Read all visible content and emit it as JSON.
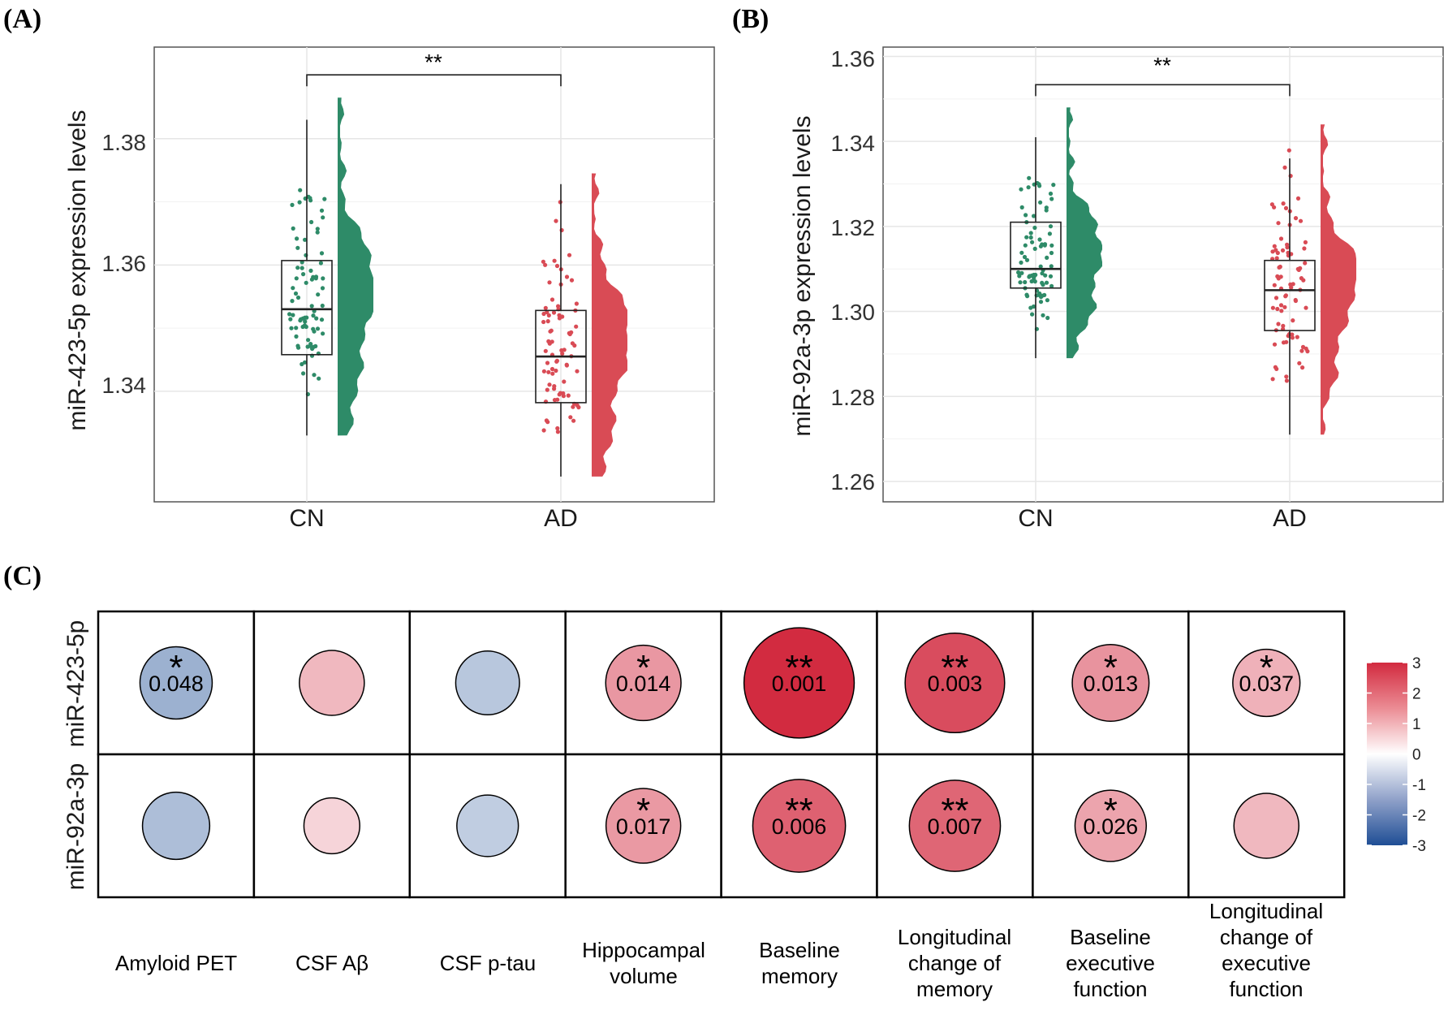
{
  "panels": {
    "a": "(A)",
    "b": "(B)",
    "c": "(C)"
  },
  "colors": {
    "cn": "#2e8b68",
    "ad": "#d94b55",
    "box": "#222222",
    "grid": "#e6e6e6"
  },
  "chart_data": [
    {
      "type": "box",
      "id": "A",
      "ylabel": "miR-423-5p expression levels",
      "categories": [
        "CN",
        "AD"
      ],
      "yticks": [
        "1.34",
        "1.36",
        "1.38"
      ],
      "ylim": [
        1.3225,
        1.3945
      ],
      "significance": "**",
      "boxes": [
        {
          "group": "CN",
          "q1": 1.3458,
          "median": 1.353,
          "q3": 1.3607,
          "whisker_low": 1.333,
          "whisker_high": 1.383,
          "max": 1.3865
        },
        {
          "group": "AD",
          "q1": 1.3382,
          "median": 1.3455,
          "q3": 1.3528,
          "whisker_low": 1.3265,
          "whisker_high": 1.3728,
          "max": 1.3745
        }
      ]
    },
    {
      "type": "box",
      "id": "B",
      "ylabel": "miR-92a-3p expression levels",
      "categories": [
        "CN",
        "AD"
      ],
      "yticks": [
        "1.26",
        "1.28",
        "1.30",
        "1.32",
        "1.34",
        "1.36"
      ],
      "ylim": [
        1.2552,
        1.3622
      ],
      "significance": "**",
      "boxes": [
        {
          "group": "CN",
          "q1": 1.3055,
          "median": 1.31,
          "q3": 1.321,
          "whisker_low": 1.289,
          "whisker_high": 1.341,
          "max": 1.348
        },
        {
          "group": "AD",
          "q1": 1.2955,
          "median": 1.305,
          "q3": 1.312,
          "whisker_low": 1.271,
          "whisker_high": 1.336,
          "max": 1.344
        }
      ]
    },
    {
      "type": "heatmap",
      "id": "C",
      "rows": [
        "miR-423-5p",
        "miR-92a-3p"
      ],
      "columns": [
        "Amyloid PET",
        "CSF Aβ",
        "CSF p-tau",
        "Hippocampal volume",
        "Baseline memory",
        "Longitudinal change of memory",
        "Baseline executive function",
        "Longitudinal change of executive function"
      ],
      "values": [
        [
          -1.32,
          1.0,
          -0.95,
          1.46,
          2.99,
          2.52,
          1.52,
          1.1
        ],
        [
          -1.1,
          0.6,
          -0.85,
          1.43,
          2.22,
          2.15,
          1.28,
          1.0
        ]
      ],
      "pvalues": [
        [
          "0.048",
          "",
          "",
          "0.014",
          "0.001",
          "0.003",
          "0.013",
          "0.037"
        ],
        [
          "",
          "",
          "",
          "0.017",
          "0.006",
          "0.007",
          "0.026",
          ""
        ]
      ],
      "stars": [
        [
          "*",
          "",
          "",
          "*",
          "**",
          "**",
          "*",
          "*"
        ],
        [
          "",
          "",
          "",
          "*",
          "**",
          "**",
          "*",
          ""
        ]
      ],
      "legend": {
        "range": [
          -3,
          3
        ],
        "ticks": [
          "3",
          "2",
          "1",
          "0",
          "-1",
          "-2",
          "-3"
        ]
      }
    }
  ]
}
